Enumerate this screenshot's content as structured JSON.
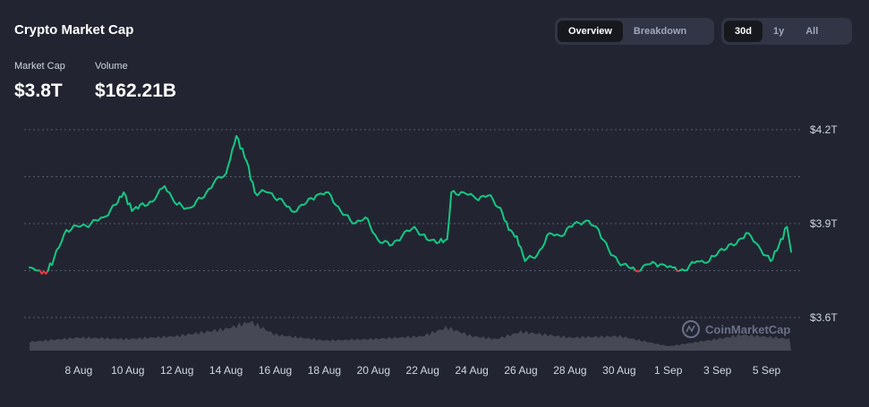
{
  "header": {
    "title": "Crypto Market Cap"
  },
  "stats": {
    "market_cap_label": "Market Cap",
    "market_cap_value": "$3.8T",
    "volume_label": "Volume",
    "volume_value": "$162.21B"
  },
  "view_toggle": {
    "options": [
      "Overview",
      "Breakdown"
    ],
    "selected": "Overview"
  },
  "range_toggle": {
    "options": [
      "30d",
      "1y",
      "All"
    ],
    "selected": "30d"
  },
  "watermark": "CoinMarketCap",
  "colors": {
    "up": "#16c784",
    "down": "#ea3943",
    "volume": "#4c4f5c",
    "grid": "#6d7286"
  },
  "chart_data": {
    "type": "line",
    "title": "",
    "xlabel": "",
    "ylabel": "",
    "unit": "USD",
    "baseline": 3.75,
    "ylim": [
      3.6,
      4.2
    ],
    "ytick_labels": [
      "$4.2T",
      "$3.9T",
      "$3.6T"
    ],
    "yticks": [
      4.2,
      4.05,
      3.9,
      3.75,
      3.6
    ],
    "grid": true,
    "xlim": [
      "2024-08-06",
      "2024-09-06"
    ],
    "xtick_labels": [
      "8 Aug",
      "10 Aug",
      "12 Aug",
      "14 Aug",
      "16 Aug",
      "18 Aug",
      "20 Aug",
      "22 Aug",
      "24 Aug",
      "26 Aug",
      "28 Aug",
      "30 Aug",
      "1 Sep",
      "3 Sep",
      "5 Sep"
    ],
    "xtick_dates": [
      "2024-08-08",
      "2024-08-10",
      "2024-08-12",
      "2024-08-14",
      "2024-08-16",
      "2024-08-18",
      "2024-08-20",
      "2024-08-22",
      "2024-08-24",
      "2024-08-26",
      "2024-08-28",
      "2024-08-30",
      "2024-09-01",
      "2024-09-03",
      "2024-09-05"
    ],
    "series": [
      {
        "kind": "market_cap_trillions",
        "points": [
          [
            "2024-08-06 00:00",
            3.76
          ],
          [
            "2024-08-06 08:00",
            3.75
          ],
          [
            "2024-08-06 16:00",
            3.74
          ],
          [
            "2024-08-07 00:00",
            3.79
          ],
          [
            "2024-08-07 12:00",
            3.88
          ],
          [
            "2024-08-08 00:00",
            3.89
          ],
          [
            "2024-08-08 12:00",
            3.9
          ],
          [
            "2024-08-09 00:00",
            3.92
          ],
          [
            "2024-08-09 12:00",
            3.96
          ],
          [
            "2024-08-09 20:00",
            4.0
          ],
          [
            "2024-08-10 04:00",
            3.94
          ],
          [
            "2024-08-10 12:00",
            3.96
          ],
          [
            "2024-08-11 00:00",
            3.97
          ],
          [
            "2024-08-11 12:00",
            4.02
          ],
          [
            "2024-08-12 00:00",
            3.96
          ],
          [
            "2024-08-12 12:00",
            3.95
          ],
          [
            "2024-08-13 00:00",
            3.98
          ],
          [
            "2024-08-13 12:00",
            4.03
          ],
          [
            "2024-08-14 00:00",
            4.06
          ],
          [
            "2024-08-14 10:00",
            4.18
          ],
          [
            "2024-08-14 20:00",
            4.1
          ],
          [
            "2024-08-15 04:00",
            4.0
          ],
          [
            "2024-08-15 16:00",
            4.0
          ],
          [
            "2024-08-16 04:00",
            3.98
          ],
          [
            "2024-08-16 16:00",
            3.94
          ],
          [
            "2024-08-17 04:00",
            3.96
          ],
          [
            "2024-08-17 16:00",
            3.99
          ],
          [
            "2024-08-18 04:00",
            4.0
          ],
          [
            "2024-08-18 16:00",
            3.94
          ],
          [
            "2024-08-19 04:00",
            3.9
          ],
          [
            "2024-08-19 16:00",
            3.92
          ],
          [
            "2024-08-20 04:00",
            3.85
          ],
          [
            "2024-08-20 16:00",
            3.83
          ],
          [
            "2024-08-21 04:00",
            3.86
          ],
          [
            "2024-08-21 16:00",
            3.89
          ],
          [
            "2024-08-22 04:00",
            3.85
          ],
          [
            "2024-08-22 16:00",
            3.84
          ],
          [
            "2024-08-23 00:00",
            3.85
          ],
          [
            "2024-08-23 04:00",
            4.0
          ],
          [
            "2024-08-23 16:00",
            4.0
          ],
          [
            "2024-08-24 04:00",
            3.98
          ],
          [
            "2024-08-24 16:00",
            3.99
          ],
          [
            "2024-08-25 04:00",
            3.95
          ],
          [
            "2024-08-25 12:00",
            3.88
          ],
          [
            "2024-08-25 20:00",
            3.86
          ],
          [
            "2024-08-26 04:00",
            3.78
          ],
          [
            "2024-08-26 16:00",
            3.8
          ],
          [
            "2024-08-27 04:00",
            3.87
          ],
          [
            "2024-08-27 16:00",
            3.86
          ],
          [
            "2024-08-28 04:00",
            3.9
          ],
          [
            "2024-08-28 16:00",
            3.91
          ],
          [
            "2024-08-29 04:00",
            3.88
          ],
          [
            "2024-08-29 16:00",
            3.8
          ],
          [
            "2024-08-30 04:00",
            3.77
          ],
          [
            "2024-08-30 16:00",
            3.75
          ],
          [
            "2024-08-31 04:00",
            3.77
          ],
          [
            "2024-08-31 16:00",
            3.77
          ],
          [
            "2024-09-01 04:00",
            3.76
          ],
          [
            "2024-09-01 16:00",
            3.75
          ],
          [
            "2024-09-02 04:00",
            3.78
          ],
          [
            "2024-09-02 16:00",
            3.78
          ],
          [
            "2024-09-03 04:00",
            3.82
          ],
          [
            "2024-09-03 16:00",
            3.83
          ],
          [
            "2024-09-04 04:00",
            3.87
          ],
          [
            "2024-09-04 16:00",
            3.83
          ],
          [
            "2024-09-05 04:00",
            3.78
          ],
          [
            "2024-09-05 12:00",
            3.83
          ],
          [
            "2024-09-05 20:00",
            3.89
          ],
          [
            "2024-09-06 00:00",
            3.81
          ]
        ]
      },
      {
        "kind": "volume_relative",
        "points": [
          [
            "2024-08-06",
            0.3
          ],
          [
            "2024-08-08",
            0.45
          ],
          [
            "2024-08-10",
            0.4
          ],
          [
            "2024-08-12",
            0.5
          ],
          [
            "2024-08-14",
            0.75
          ],
          [
            "2024-08-15",
            1.0
          ],
          [
            "2024-08-16",
            0.55
          ],
          [
            "2024-08-18",
            0.35
          ],
          [
            "2024-08-20",
            0.4
          ],
          [
            "2024-08-22",
            0.5
          ],
          [
            "2024-08-23",
            0.8
          ],
          [
            "2024-08-24",
            0.5
          ],
          [
            "2024-08-25",
            0.4
          ],
          [
            "2024-08-26",
            0.65
          ],
          [
            "2024-08-28",
            0.45
          ],
          [
            "2024-08-30",
            0.5
          ],
          [
            "2024-09-01",
            0.15
          ],
          [
            "2024-09-03",
            0.4
          ],
          [
            "2024-09-04",
            0.55
          ],
          [
            "2024-09-06",
            0.4
          ]
        ]
      }
    ]
  }
}
